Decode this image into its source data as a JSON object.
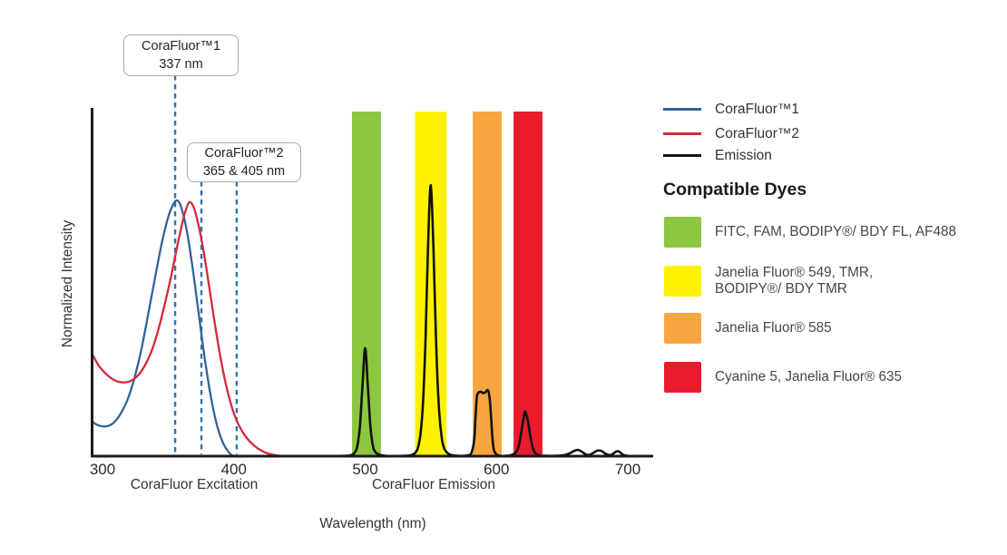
{
  "axes": {
    "y_label": "Normalized Intensity",
    "x_label": "Wavelength (nm)",
    "x_section_left": "CoraFluor Excitation",
    "x_section_right": "CoraFluor Emission"
  },
  "annotations": {
    "cf1": {
      "line1": "CoraFluor™1",
      "line2": "337 nm"
    },
    "cf2": {
      "line1": "CoraFluor™2",
      "line2": "365 & 405 nm"
    }
  },
  "legend": {
    "items": [
      {
        "label": "CoraFluor™1",
        "color": "#30639B"
      },
      {
        "label": "CoraFluor™2",
        "color": "#D5283C"
      },
      {
        "label": "Emission",
        "color": "#141414"
      }
    ]
  },
  "compatible_dyes": {
    "heading": "Compatible Dyes",
    "items": [
      {
        "name": "green-filter",
        "color": "#8DC63F",
        "lines": [
          "FITC, FAM, BODIPY®/ BDY FL, AF488"
        ]
      },
      {
        "name": "yellow-filter",
        "color": "#FFF200",
        "lines": [
          "Janelia Fluor® 549, TMR,",
          "BODIPY®/ BDY TMR"
        ]
      },
      {
        "name": "orange-filter",
        "color": "#F7A63F",
        "lines": [
          "Janelia Fluor® 585"
        ]
      },
      {
        "name": "red-filter",
        "color": "#EA1C2C",
        "lines": [
          "Cyanine 5, Janelia Fluor® 635"
        ]
      }
    ]
  },
  "chart_data": {
    "type": "line",
    "xlabel": "Wavelength (nm)",
    "ylabel": "Normalized Intensity",
    "x_ticks": [
      300,
      400,
      500,
      600,
      700
    ],
    "x_range_nm": [
      292,
      719
    ],
    "y_range": [
      0,
      1
    ],
    "grid": false,
    "legend_position": "right",
    "excitation_maxima": {
      "CoraFluor™1": "337 nm",
      "CoraFluor™2": "365 & 405 nm"
    },
    "dashed_markers": [
      {
        "label_nm": 337,
        "x_nm": 355.3,
        "series": "CoraFluor™1"
      },
      {
        "label_nm": 365,
        "x_nm": 375.3,
        "series": "CoraFluor™2"
      },
      {
        "label_nm": 405,
        "x_nm": 402.2,
        "series": "CoraFluor™2"
      }
    ],
    "bands": [
      {
        "name": "green",
        "from_nm": 490,
        "to_nm": 512,
        "color": "#8DC63F",
        "dyes": "FITC, FAM, BODIPY®/ BDY FL, AF488"
      },
      {
        "name": "yellow",
        "from_nm": 538,
        "to_nm": 562,
        "color": "#FFF200",
        "dyes": "Janelia Fluor® 549, TMR, BODIPY®/ BDY TMR"
      },
      {
        "name": "orange",
        "from_nm": 582,
        "to_nm": 604,
        "color": "#F7A63F",
        "dyes": "Janelia Fluor® 585"
      },
      {
        "name": "red",
        "from_nm": 613,
        "to_nm": 635,
        "color": "#EA1C2C",
        "dyes": "Cyanine 5, Janelia Fluor® 635"
      }
    ],
    "emission_peaks": [
      {
        "nm": 500,
        "intensity": 0.31
      },
      {
        "nm": 550,
        "intensity": 0.78
      },
      {
        "nm": 593,
        "intensity": 0.19
      },
      {
        "nm": 622,
        "intensity": 0.13
      }
    ],
    "series": [
      {
        "name": "CoraFluor™1",
        "role": "excitation",
        "color": "#30639B",
        "points": [
          [
            292,
            0.1
          ],
          [
            296,
            0.09
          ],
          [
            300,
            0.086
          ],
          [
            304,
            0.087
          ],
          [
            308,
            0.095
          ],
          [
            312,
            0.112
          ],
          [
            316,
            0.138
          ],
          [
            320,
            0.172
          ],
          [
            325,
            0.235
          ],
          [
            330,
            0.315
          ],
          [
            335,
            0.415
          ],
          [
            340,
            0.515
          ],
          [
            345,
            0.612
          ],
          [
            350,
            0.69
          ],
          [
            354,
            0.728
          ],
          [
            357,
            0.738
          ],
          [
            360,
            0.718
          ],
          [
            364,
            0.655
          ],
          [
            368,
            0.56
          ],
          [
            372,
            0.448
          ],
          [
            376,
            0.332
          ],
          [
            380,
            0.228
          ],
          [
            384,
            0.142
          ],
          [
            388,
            0.078
          ],
          [
            392,
            0.036
          ],
          [
            396,
            0.012
          ],
          [
            399,
            0.002
          ],
          [
            400,
            0.0
          ]
        ]
      },
      {
        "name": "CoraFluor™2",
        "role": "excitation",
        "color": "#D5283C",
        "points": [
          [
            292,
            0.296
          ],
          [
            297,
            0.262
          ],
          [
            302,
            0.24
          ],
          [
            307,
            0.224
          ],
          [
            312,
            0.215
          ],
          [
            317,
            0.213
          ],
          [
            322,
            0.218
          ],
          [
            327,
            0.233
          ],
          [
            332,
            0.26
          ],
          [
            337,
            0.3
          ],
          [
            342,
            0.358
          ],
          [
            347,
            0.432
          ],
          [
            352,
            0.515
          ],
          [
            356,
            0.59
          ],
          [
            360,
            0.66
          ],
          [
            363,
            0.705
          ],
          [
            366,
            0.733
          ],
          [
            369,
            0.722
          ],
          [
            372,
            0.685
          ],
          [
            376,
            0.612
          ],
          [
            380,
            0.52
          ],
          [
            384,
            0.42
          ],
          [
            388,
            0.325
          ],
          [
            392,
            0.242
          ],
          [
            396,
            0.175
          ],
          [
            400,
            0.124
          ],
          [
            404,
            0.088
          ],
          [
            408,
            0.062
          ],
          [
            412,
            0.043
          ],
          [
            416,
            0.029
          ],
          [
            420,
            0.018
          ],
          [
            425,
            0.009
          ],
          [
            430,
            0.004
          ],
          [
            436,
            0.001
          ],
          [
            440,
            0.0
          ]
        ]
      },
      {
        "name": "Emission",
        "role": "emission",
        "color": "#111111",
        "points": [
          [
            470,
            0.0
          ],
          [
            486,
            0.001
          ],
          [
            490,
            0.004
          ],
          [
            492,
            0.01
          ],
          [
            494,
            0.028
          ],
          [
            496,
            0.085
          ],
          [
            498,
            0.205
          ],
          [
            500,
            0.312
          ],
          [
            502,
            0.205
          ],
          [
            504,
            0.085
          ],
          [
            506,
            0.028
          ],
          [
            508,
            0.011
          ],
          [
            511,
            0.004
          ],
          [
            515,
            0.001
          ],
          [
            522,
            0.0
          ],
          [
            530,
            0.001
          ],
          [
            535,
            0.003
          ],
          [
            538,
            0.009
          ],
          [
            540,
            0.022
          ],
          [
            542,
            0.06
          ],
          [
            544,
            0.15
          ],
          [
            546,
            0.34
          ],
          [
            548,
            0.62
          ],
          [
            550,
            0.782
          ],
          [
            552,
            0.6
          ],
          [
            554,
            0.33
          ],
          [
            556,
            0.15
          ],
          [
            558,
            0.062
          ],
          [
            560,
            0.024
          ],
          [
            563,
            0.008
          ],
          [
            566,
            0.003
          ],
          [
            570,
            0.001
          ],
          [
            576,
            0.001
          ],
          [
            579,
            0.003
          ],
          [
            581,
            0.01
          ],
          [
            583,
            0.045
          ],
          [
            584,
            0.11
          ],
          [
            585,
            0.168
          ],
          [
            586,
            0.182
          ],
          [
            588,
            0.186
          ],
          [
            590,
            0.182
          ],
          [
            592,
            0.186
          ],
          [
            593,
            0.191
          ],
          [
            594,
            0.186
          ],
          [
            595,
            0.16
          ],
          [
            596,
            0.105
          ],
          [
            597,
            0.05
          ],
          [
            598,
            0.018
          ],
          [
            600,
            0.005
          ],
          [
            603,
            0.001
          ],
          [
            608,
            0.001
          ],
          [
            612,
            0.004
          ],
          [
            615,
            0.012
          ],
          [
            617,
            0.03
          ],
          [
            619,
            0.072
          ],
          [
            621,
            0.118
          ],
          [
            622,
            0.128
          ],
          [
            624,
            0.1
          ],
          [
            626,
            0.052
          ],
          [
            628,
            0.02
          ],
          [
            630,
            0.007
          ],
          [
            633,
            0.002
          ],
          [
            637,
            0.001
          ],
          [
            645,
            0.001
          ],
          [
            650,
            0.002
          ],
          [
            655,
            0.007
          ],
          [
            659,
            0.015
          ],
          [
            662,
            0.018
          ],
          [
            665,
            0.013
          ],
          [
            668,
            0.005
          ],
          [
            671,
            0.004
          ],
          [
            674,
            0.01
          ],
          [
            677,
            0.016
          ],
          [
            680,
            0.015
          ],
          [
            683,
            0.007
          ],
          [
            686,
            0.003
          ],
          [
            688,
            0.005
          ],
          [
            691,
            0.013
          ],
          [
            693,
            0.014
          ],
          [
            695,
            0.008
          ],
          [
            697,
            0.003
          ],
          [
            700,
            0.001
          ],
          [
            703,
            0.0
          ]
        ]
      }
    ]
  }
}
